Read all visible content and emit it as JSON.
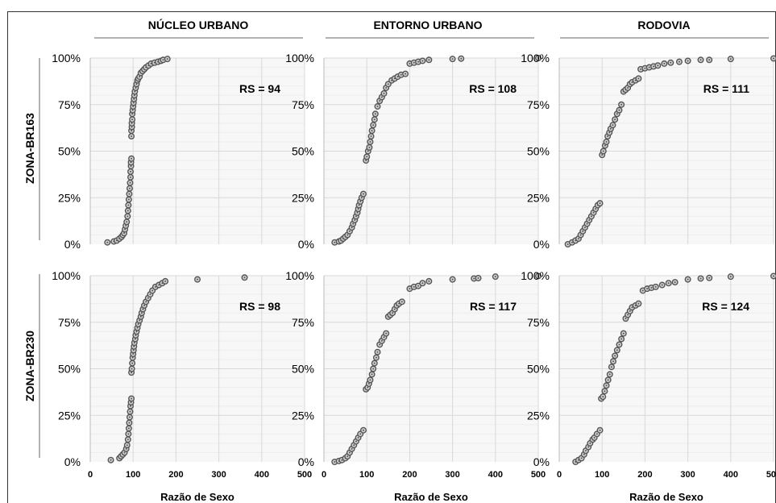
{
  "colors": {
    "plot_bg": "#f7f7f7",
    "grid": "#d9d9d9",
    "grid_minor": "#ededed",
    "marker_stroke": "#555555",
    "marker_fill": "#d0d0d0",
    "text": "#000000",
    "border": "#333333"
  },
  "columns": [
    "NÚCLEO URBANO",
    "ENTORNO URBANO",
    "RODOVIA"
  ],
  "rows": [
    "ZONA-BR163",
    "ZONA-BR230"
  ],
  "xlabel": "Razão de Sexo",
  "x_ticks": [
    "0",
    "100",
    "200",
    "300",
    "400",
    "500"
  ],
  "y_ticks": [
    "0%",
    "25%",
    "50%",
    "75%",
    "100%"
  ],
  "chart_data": [
    {
      "type": "scatter",
      "row": "ZONA-BR163",
      "column": "NÚCLEO URBANO",
      "annotation": "RS = 94",
      "xlim": [
        0,
        500
      ],
      "ylim": [
        0,
        100
      ],
      "xlabel": "Razão de Sexo",
      "points": [
        [
          40,
          1
        ],
        [
          55,
          1.5
        ],
        [
          62,
          2
        ],
        [
          68,
          3
        ],
        [
          73,
          4
        ],
        [
          76,
          5
        ],
        [
          79,
          6
        ],
        [
          81,
          8
        ],
        [
          83,
          10
        ],
        [
          85,
          12
        ],
        [
          87,
          15
        ],
        [
          88,
          18
        ],
        [
          89,
          21
        ],
        [
          90,
          24
        ],
        [
          91,
          27
        ],
        [
          92,
          30
        ],
        [
          93,
          33
        ],
        [
          94,
          36
        ],
        [
          94,
          39
        ],
        [
          95,
          42
        ],
        [
          95,
          44
        ],
        [
          96,
          46
        ],
        [
          96,
          58
        ],
        [
          96,
          61
        ],
        [
          97,
          63
        ],
        [
          97,
          65
        ],
        [
          98,
          67
        ],
        [
          98,
          70
        ],
        [
          99,
          72
        ],
        [
          100,
          74
        ],
        [
          101,
          76
        ],
        [
          102,
          78
        ],
        [
          103,
          80
        ],
        [
          104,
          82
        ],
        [
          106,
          84
        ],
        [
          108,
          86
        ],
        [
          110,
          88
        ],
        [
          112,
          89
        ],
        [
          115,
          90
        ],
        [
          118,
          92
        ],
        [
          122,
          93
        ],
        [
          126,
          94
        ],
        [
          130,
          95
        ],
        [
          136,
          96
        ],
        [
          142,
          97
        ],
        [
          150,
          97.5
        ],
        [
          158,
          98
        ],
        [
          165,
          98.5
        ],
        [
          170,
          99
        ],
        [
          180,
          99.5
        ]
      ]
    },
    {
      "type": "scatter",
      "row": "ZONA-BR163",
      "column": "ENTORNO URBANO",
      "annotation": "RS = 108",
      "xlim": [
        0,
        500
      ],
      "ylim": [
        0,
        100
      ],
      "xlabel": "Razão de Sexo",
      "points": [
        [
          25,
          1
        ],
        [
          35,
          1.5
        ],
        [
          40,
          2
        ],
        [
          45,
          3
        ],
        [
          50,
          4
        ],
        [
          55,
          5
        ],
        [
          60,
          7
        ],
        [
          65,
          9
        ],
        [
          68,
          11
        ],
        [
          72,
          13
        ],
        [
          75,
          15
        ],
        [
          78,
          17
        ],
        [
          80,
          19
        ],
        [
          82,
          21
        ],
        [
          85,
          23
        ],
        [
          88,
          25
        ],
        [
          92,
          27
        ],
        [
          98,
          45
        ],
        [
          100,
          47
        ],
        [
          103,
          50
        ],
        [
          106,
          52
        ],
        [
          108,
          55
        ],
        [
          110,
          58
        ],
        [
          112,
          61
        ],
        [
          115,
          64
        ],
        [
          118,
          67
        ],
        [
          120,
          70
        ],
        [
          125,
          74
        ],
        [
          130,
          77
        ],
        [
          135,
          79
        ],
        [
          140,
          81
        ],
        [
          145,
          84
        ],
        [
          150,
          86
        ],
        [
          158,
          88
        ],
        [
          165,
          89
        ],
        [
          172,
          90
        ],
        [
          180,
          91
        ],
        [
          190,
          91.5
        ],
        [
          200,
          97
        ],
        [
          210,
          97.5
        ],
        [
          220,
          98
        ],
        [
          230,
          98.5
        ],
        [
          245,
          99
        ],
        [
          300,
          99.5
        ],
        [
          320,
          99.7
        ],
        [
          500,
          100
        ]
      ]
    },
    {
      "type": "scatter",
      "row": "ZONA-BR163",
      "column": "RODOVIA",
      "annotation": "RS = 111",
      "xlim": [
        0,
        500
      ],
      "ylim": [
        0,
        100
      ],
      "xlabel": "Razão de Sexo",
      "points": [
        [
          20,
          0
        ],
        [
          30,
          1
        ],
        [
          38,
          2
        ],
        [
          45,
          3
        ],
        [
          50,
          5
        ],
        [
          55,
          7
        ],
        [
          60,
          9
        ],
        [
          65,
          11
        ],
        [
          70,
          13
        ],
        [
          75,
          15
        ],
        [
          80,
          17
        ],
        [
          85,
          19
        ],
        [
          90,
          21
        ],
        [
          95,
          22
        ],
        [
          100,
          48
        ],
        [
          103,
          50
        ],
        [
          107,
          53
        ],
        [
          110,
          55
        ],
        [
          113,
          58
        ],
        [
          117,
          60
        ],
        [
          120,
          62
        ],
        [
          125,
          64
        ],
        [
          130,
          67
        ],
        [
          135,
          70
        ],
        [
          140,
          72
        ],
        [
          145,
          75
        ],
        [
          150,
          82
        ],
        [
          155,
          83
        ],
        [
          160,
          84
        ],
        [
          165,
          86
        ],
        [
          170,
          87
        ],
        [
          178,
          88
        ],
        [
          185,
          89
        ],
        [
          190,
          94
        ],
        [
          200,
          94.5
        ],
        [
          210,
          95
        ],
        [
          220,
          95.5
        ],
        [
          230,
          96
        ],
        [
          245,
          97
        ],
        [
          260,
          97.5
        ],
        [
          280,
          98
        ],
        [
          300,
          98.5
        ],
        [
          330,
          99
        ],
        [
          350,
          99
        ],
        [
          400,
          99.5
        ],
        [
          500,
          99.8
        ]
      ]
    },
    {
      "type": "scatter",
      "row": "ZONA-BR230",
      "column": "NÚCLEO URBANO",
      "annotation": "RS = 98",
      "xlim": [
        0,
        500
      ],
      "ylim": [
        0,
        100
      ],
      "xlabel": "Razão de Sexo",
      "points": [
        [
          48,
          1
        ],
        [
          68,
          2
        ],
        [
          72,
          3
        ],
        [
          76,
          4
        ],
        [
          80,
          5
        ],
        [
          84,
          7
        ],
        [
          86,
          9
        ],
        [
          88,
          12
        ],
        [
          89,
          15
        ],
        [
          90,
          18
        ],
        [
          91,
          21
        ],
        [
          92,
          24
        ],
        [
          93,
          27
        ],
        [
          94,
          30
        ],
        [
          95,
          32
        ],
        [
          96,
          34
        ],
        [
          96,
          48
        ],
        [
          97,
          50
        ],
        [
          98,
          53
        ],
        [
          99,
          56
        ],
        [
          100,
          58
        ],
        [
          101,
          60
        ],
        [
          102,
          62
        ],
        [
          103,
          64
        ],
        [
          105,
          66
        ],
        [
          106,
          68
        ],
        [
          108,
          70
        ],
        [
          110,
          72
        ],
        [
          112,
          74
        ],
        [
          115,
          76
        ],
        [
          118,
          78
        ],
        [
          120,
          80
        ],
        [
          123,
          82
        ],
        [
          126,
          84
        ],
        [
          130,
          86
        ],
        [
          135,
          88
        ],
        [
          140,
          90
        ],
        [
          145,
          92
        ],
        [
          152,
          94
        ],
        [
          160,
          95
        ],
        [
          168,
          96
        ],
        [
          175,
          97
        ],
        [
          250,
          98
        ],
        [
          360,
          99
        ]
      ]
    },
    {
      "type": "scatter",
      "row": "ZONA-BR230",
      "column": "ENTORNO URBANO",
      "annotation": "RS = 117",
      "xlim": [
        0,
        500
      ],
      "ylim": [
        0,
        100
      ],
      "xlabel": "Razão de Sexo",
      "points": [
        [
          25,
          0
        ],
        [
          35,
          0.5
        ],
        [
          42,
          1
        ],
        [
          50,
          2
        ],
        [
          55,
          3
        ],
        [
          60,
          5
        ],
        [
          65,
          7
        ],
        [
          70,
          9
        ],
        [
          75,
          11
        ],
        [
          80,
          13
        ],
        [
          85,
          15
        ],
        [
          92,
          17
        ],
        [
          98,
          39
        ],
        [
          102,
          40
        ],
        [
          105,
          42
        ],
        [
          108,
          44
        ],
        [
          112,
          47
        ],
        [
          115,
          50
        ],
        [
          118,
          53
        ],
        [
          122,
          56
        ],
        [
          125,
          59
        ],
        [
          130,
          63
        ],
        [
          135,
          65
        ],
        [
          140,
          67
        ],
        [
          145,
          69
        ],
        [
          150,
          78
        ],
        [
          155,
          79
        ],
        [
          160,
          80
        ],
        [
          165,
          82
        ],
        [
          170,
          84
        ],
        [
          175,
          85
        ],
        [
          182,
          86
        ],
        [
          200,
          93
        ],
        [
          210,
          94
        ],
        [
          220,
          94.5
        ],
        [
          230,
          96
        ],
        [
          245,
          97
        ],
        [
          300,
          98
        ],
        [
          350,
          98.5
        ],
        [
          360,
          98.7
        ],
        [
          400,
          99.5
        ],
        [
          500,
          99.8
        ]
      ]
    },
    {
      "type": "scatter",
      "row": "ZONA-BR230",
      "column": "RODOVIA",
      "annotation": "RS = 124",
      "xlim": [
        0,
        500
      ],
      "ylim": [
        0,
        100
      ],
      "xlabel": "Razão de Sexo",
      "points": [
        [
          38,
          0
        ],
        [
          45,
          1
        ],
        [
          52,
          2
        ],
        [
          58,
          4
        ],
        [
          62,
          6
        ],
        [
          68,
          8
        ],
        [
          72,
          10
        ],
        [
          78,
          12
        ],
        [
          82,
          13
        ],
        [
          88,
          15
        ],
        [
          95,
          17
        ],
        [
          98,
          34
        ],
        [
          102,
          35
        ],
        [
          106,
          38
        ],
        [
          110,
          41
        ],
        [
          114,
          44
        ],
        [
          118,
          47
        ],
        [
          122,
          51
        ],
        [
          126,
          54
        ],
        [
          130,
          57
        ],
        [
          135,
          60
        ],
        [
          140,
          63
        ],
        [
          145,
          66
        ],
        [
          150,
          69
        ],
        [
          155,
          77
        ],
        [
          160,
          79
        ],
        [
          165,
          81
        ],
        [
          170,
          83
        ],
        [
          178,
          84
        ],
        [
          185,
          85
        ],
        [
          195,
          92
        ],
        [
          205,
          93
        ],
        [
          215,
          93.5
        ],
        [
          225,
          94
        ],
        [
          240,
          95
        ],
        [
          255,
          96
        ],
        [
          270,
          96.5
        ],
        [
          300,
          98
        ],
        [
          330,
          98.5
        ],
        [
          350,
          98.8
        ],
        [
          400,
          99.5
        ],
        [
          500,
          99.8
        ]
      ]
    }
  ]
}
